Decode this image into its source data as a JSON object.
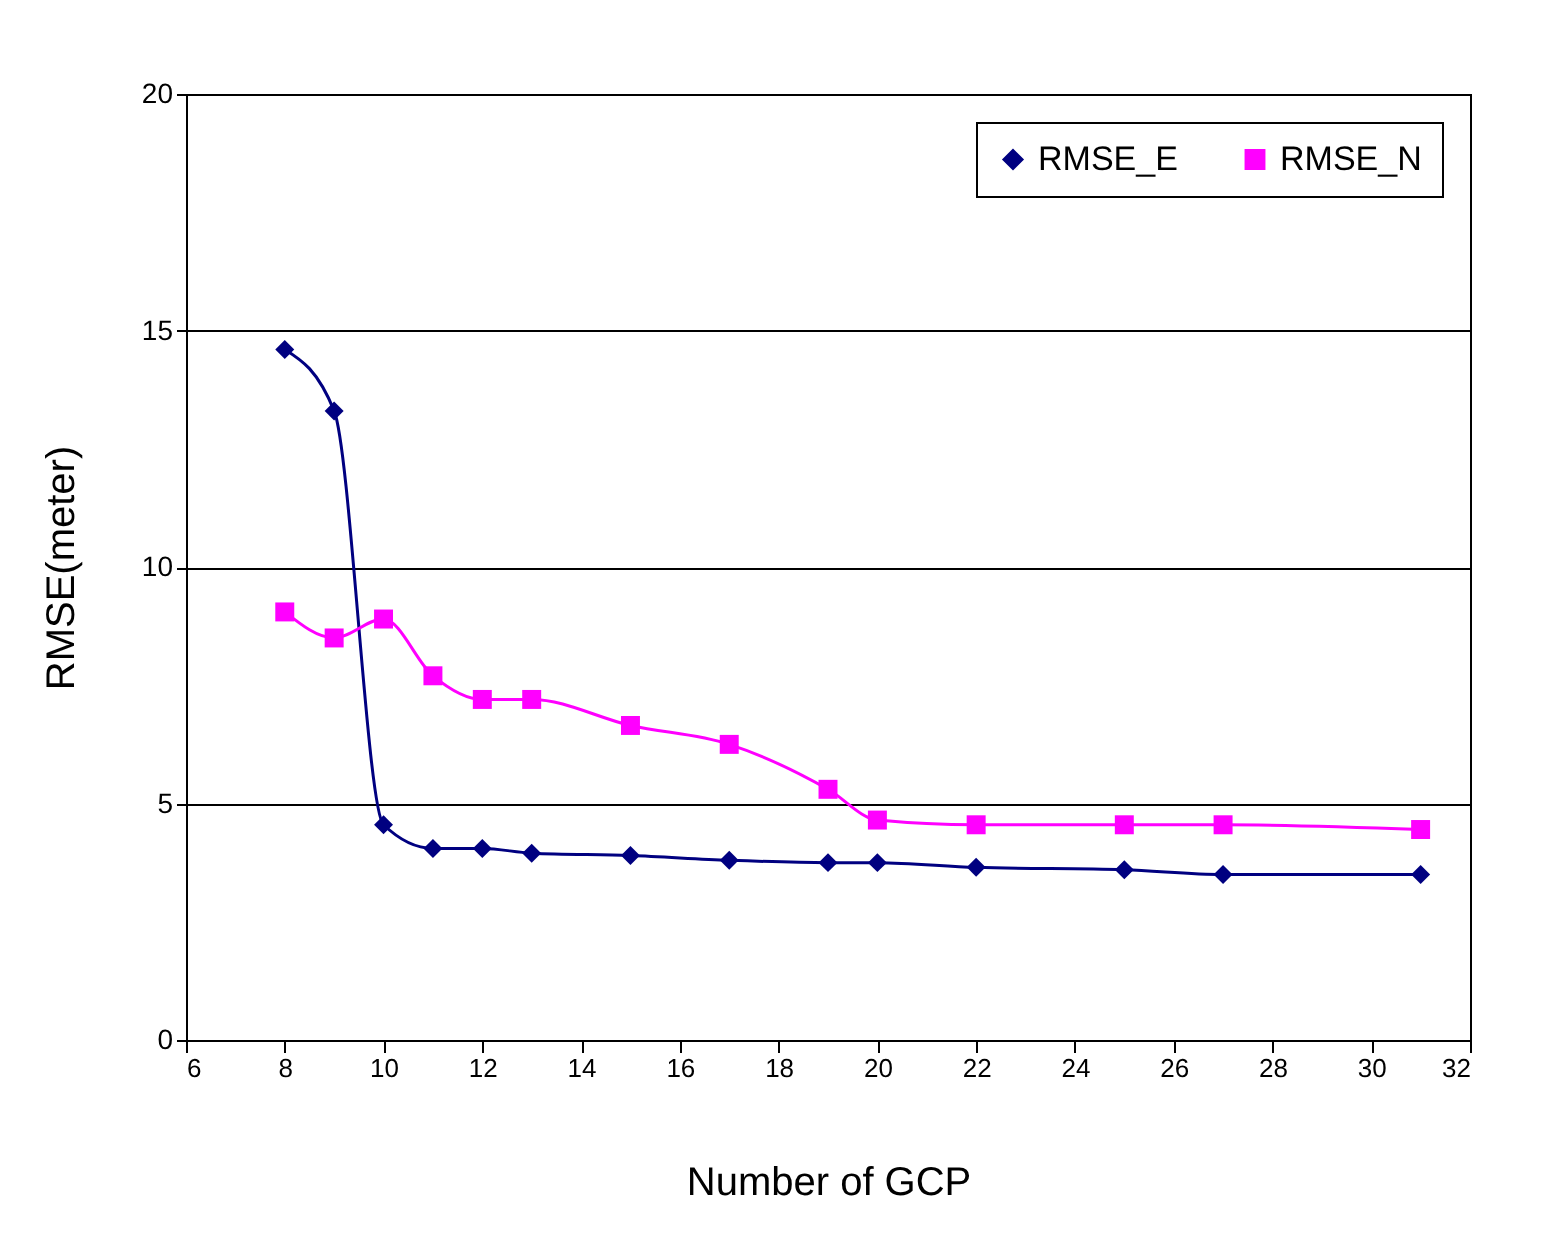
{
  "chart_data": {
    "type": "line",
    "xlabel": "Number of GCP",
    "ylabel": "RMSE(meter)",
    "x": [
      8,
      9,
      10,
      11,
      12,
      13,
      15,
      17,
      19,
      20,
      22,
      25,
      27,
      31
    ],
    "series": [
      {
        "name": "RMSE_E",
        "color": "#000080",
        "marker": "diamond",
        "values": [
          14.6,
          13.3,
          4.55,
          4.05,
          4.05,
          3.95,
          3.9,
          3.8,
          3.75,
          3.75,
          3.65,
          3.6,
          3.5,
          3.5
        ]
      },
      {
        "name": "RMSE_N",
        "color": "#ff00ff",
        "marker": "square",
        "values": [
          9.05,
          8.5,
          8.9,
          7.7,
          7.2,
          7.2,
          6.65,
          6.25,
          5.3,
          4.65,
          4.55,
          4.55,
          4.55,
          4.45
        ]
      }
    ],
    "xlim": [
      6,
      32
    ],
    "xticks": [
      6,
      8,
      10,
      12,
      14,
      16,
      18,
      20,
      22,
      24,
      26,
      28,
      30,
      32
    ],
    "ylim": [
      0,
      20
    ],
    "yticks": [
      0,
      5,
      10,
      15,
      20
    ],
    "grid": "y",
    "legend": "top right",
    "line_style": "solid"
  }
}
